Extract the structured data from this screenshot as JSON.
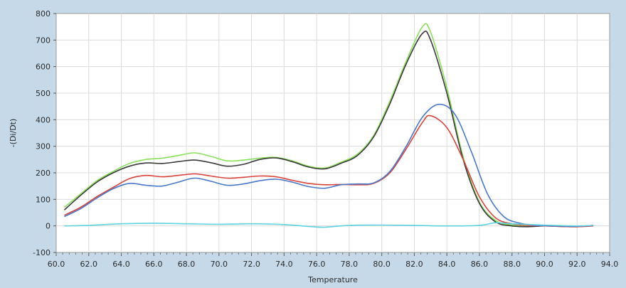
{
  "chart_data": {
    "type": "line",
    "xlabel": "Temperature",
    "ylabel": "-(Di/Dt)",
    "xlim": [
      60.0,
      94.0
    ],
    "ylim": [
      -100,
      800
    ],
    "x_ticks": [
      "60.0",
      "62.0",
      "64.0",
      "66.0",
      "68.0",
      "70.0",
      "72.0",
      "74.0",
      "76.0",
      "78.0",
      "80.0",
      "82.0",
      "84.0",
      "86.0",
      "88.0",
      "90.0",
      "92.0",
      "94.0"
    ],
    "y_ticks": [
      "-100",
      "0",
      "100",
      "200",
      "300",
      "400",
      "500",
      "600",
      "700",
      "800"
    ],
    "grid": true,
    "legend": "none",
    "series": [
      {
        "color": "#8be05a",
        "points": [
          [
            60.5,
            70
          ],
          [
            61.5,
            120
          ],
          [
            62.5,
            170
          ],
          [
            63.5,
            205
          ],
          [
            64.5,
            235
          ],
          [
            65.5,
            250
          ],
          [
            66.5,
            255
          ],
          [
            67.5,
            265
          ],
          [
            68.5,
            275
          ],
          [
            69.5,
            262
          ],
          [
            70.5,
            245
          ],
          [
            71.5,
            248
          ],
          [
            72.5,
            255
          ],
          [
            73.5,
            258
          ],
          [
            74.5,
            245
          ],
          [
            75.5,
            225
          ],
          [
            76.5,
            218
          ],
          [
            77.5,
            240
          ],
          [
            78.5,
            270
          ],
          [
            79.5,
            340
          ],
          [
            80.5,
            470
          ],
          [
            81.5,
            620
          ],
          [
            82.5,
            750
          ],
          [
            83.0,
            730
          ],
          [
            84.0,
            520
          ],
          [
            85.0,
            260
          ],
          [
            86.0,
            90
          ],
          [
            87.0,
            20
          ],
          [
            88.0,
            3
          ],
          [
            89.0,
            -2
          ],
          [
            90.0,
            0
          ],
          [
            91.0,
            0
          ],
          [
            92.0,
            -2
          ],
          [
            93.0,
            2
          ]
        ]
      },
      {
        "color": "#3a3a3a",
        "points": [
          [
            60.5,
            60
          ],
          [
            61.5,
            115
          ],
          [
            62.5,
            165
          ],
          [
            63.5,
            200
          ],
          [
            64.5,
            225
          ],
          [
            65.5,
            237
          ],
          [
            66.5,
            235
          ],
          [
            67.5,
            242
          ],
          [
            68.5,
            248
          ],
          [
            69.5,
            238
          ],
          [
            70.5,
            225
          ],
          [
            71.5,
            232
          ],
          [
            72.5,
            250
          ],
          [
            73.5,
            256
          ],
          [
            74.5,
            242
          ],
          [
            75.5,
            222
          ],
          [
            76.5,
            215
          ],
          [
            77.5,
            236
          ],
          [
            78.5,
            265
          ],
          [
            79.5,
            335
          ],
          [
            80.5,
            460
          ],
          [
            81.5,
            610
          ],
          [
            82.5,
            725
          ],
          [
            83.0,
            700
          ],
          [
            84.0,
            500
          ],
          [
            85.0,
            250
          ],
          [
            86.0,
            85
          ],
          [
            87.0,
            15
          ],
          [
            88.0,
            0
          ],
          [
            89.0,
            -3
          ],
          [
            90.0,
            0
          ],
          [
            91.0,
            -2
          ],
          [
            92.0,
            -3
          ],
          [
            93.0,
            2
          ]
        ]
      },
      {
        "color": "#d9433b",
        "points": [
          [
            60.5,
            40
          ],
          [
            61.5,
            70
          ],
          [
            62.5,
            110
          ],
          [
            63.5,
            145
          ],
          [
            64.5,
            178
          ],
          [
            65.5,
            190
          ],
          [
            66.5,
            185
          ],
          [
            67.5,
            190
          ],
          [
            68.5,
            196
          ],
          [
            69.5,
            188
          ],
          [
            70.5,
            180
          ],
          [
            71.5,
            183
          ],
          [
            72.5,
            188
          ],
          [
            73.5,
            185
          ],
          [
            74.5,
            172
          ],
          [
            75.5,
            160
          ],
          [
            76.5,
            155
          ],
          [
            77.5,
            156
          ],
          [
            78.5,
            155
          ],
          [
            79.5,
            160
          ],
          [
            80.5,
            200
          ],
          [
            81.5,
            290
          ],
          [
            82.5,
            390
          ],
          [
            83.0,
            415
          ],
          [
            84.0,
            370
          ],
          [
            85.0,
            250
          ],
          [
            86.0,
            110
          ],
          [
            87.0,
            30
          ],
          [
            88.0,
            8
          ],
          [
            89.0,
            2
          ],
          [
            90.0,
            0
          ],
          [
            91.0,
            -2
          ],
          [
            92.0,
            -3
          ],
          [
            93.0,
            0
          ]
        ]
      },
      {
        "color": "#4a78c9",
        "points": [
          [
            60.5,
            35
          ],
          [
            61.5,
            65
          ],
          [
            62.5,
            105
          ],
          [
            63.5,
            140
          ],
          [
            64.5,
            160
          ],
          [
            65.5,
            153
          ],
          [
            66.5,
            150
          ],
          [
            67.5,
            165
          ],
          [
            68.5,
            180
          ],
          [
            69.5,
            168
          ],
          [
            70.5,
            153
          ],
          [
            71.5,
            158
          ],
          [
            72.5,
            170
          ],
          [
            73.5,
            176
          ],
          [
            74.5,
            165
          ],
          [
            75.5,
            148
          ],
          [
            76.5,
            142
          ],
          [
            77.5,
            155
          ],
          [
            78.5,
            158
          ],
          [
            79.5,
            162
          ],
          [
            80.5,
            205
          ],
          [
            81.5,
            300
          ],
          [
            82.5,
            410
          ],
          [
            83.5,
            458
          ],
          [
            84.5,
            420
          ],
          [
            85.5,
            280
          ],
          [
            86.5,
            120
          ],
          [
            87.5,
            35
          ],
          [
            88.5,
            10
          ],
          [
            89.5,
            2
          ],
          [
            90.5,
            0
          ],
          [
            91.5,
            -2
          ],
          [
            92.5,
            0
          ],
          [
            93.0,
            2
          ]
        ]
      },
      {
        "color": "#5fd3e0",
        "points": [
          [
            60.5,
            0
          ],
          [
            62.0,
            2
          ],
          [
            64.0,
            8
          ],
          [
            66.0,
            10
          ],
          [
            68.0,
            8
          ],
          [
            70.0,
            6
          ],
          [
            72.0,
            8
          ],
          [
            74.0,
            5
          ],
          [
            75.5,
            -2
          ],
          [
            76.5,
            -5
          ],
          [
            78.0,
            2
          ],
          [
            80.0,
            3
          ],
          [
            82.0,
            2
          ],
          [
            84.0,
            0
          ],
          [
            86.0,
            2
          ],
          [
            87.0,
            12
          ],
          [
            88.0,
            8
          ],
          [
            90.0,
            3
          ],
          [
            92.0,
            0
          ],
          [
            93.0,
            2
          ]
        ]
      }
    ]
  }
}
